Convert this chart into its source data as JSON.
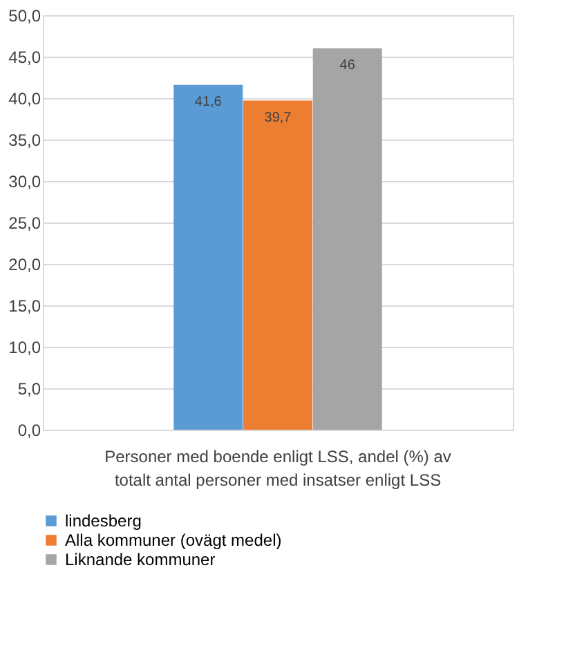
{
  "chart_data": {
    "type": "bar",
    "categories": [
      "Personer med boende enligt LSS, andel (%) av totalt antal personer med insatser enligt LSS"
    ],
    "series": [
      {
        "name": "lindesberg",
        "color": "#5b9bd5",
        "values": [
          41.6
        ],
        "value_labels": [
          "41,6"
        ]
      },
      {
        "name": "Alla kommuner (ovägt medel)",
        "color": "#ed7d31",
        "values": [
          39.7
        ],
        "value_labels": [
          "39,7"
        ]
      },
      {
        "name": "Liknande kommuner",
        "color": "#a5a5a5",
        "values": [
          46
        ],
        "value_labels": [
          "46"
        ]
      }
    ],
    "ylim": [
      0,
      50
    ],
    "yticks": [
      {
        "value": 0,
        "label": "0,0"
      },
      {
        "value": 5,
        "label": "5,0"
      },
      {
        "value": 10,
        "label": "10,0"
      },
      {
        "value": 15,
        "label": "15,0"
      },
      {
        "value": 20,
        "label": "20,0"
      },
      {
        "value": 25,
        "label": "25,0"
      },
      {
        "value": 30,
        "label": "30,0"
      },
      {
        "value": 35,
        "label": "35,0"
      },
      {
        "value": 40,
        "label": "40,0"
      },
      {
        "value": 45,
        "label": "45,0"
      },
      {
        "value": 50,
        "label": "50,0"
      }
    ],
    "grid": "y",
    "legend": "bottom"
  }
}
